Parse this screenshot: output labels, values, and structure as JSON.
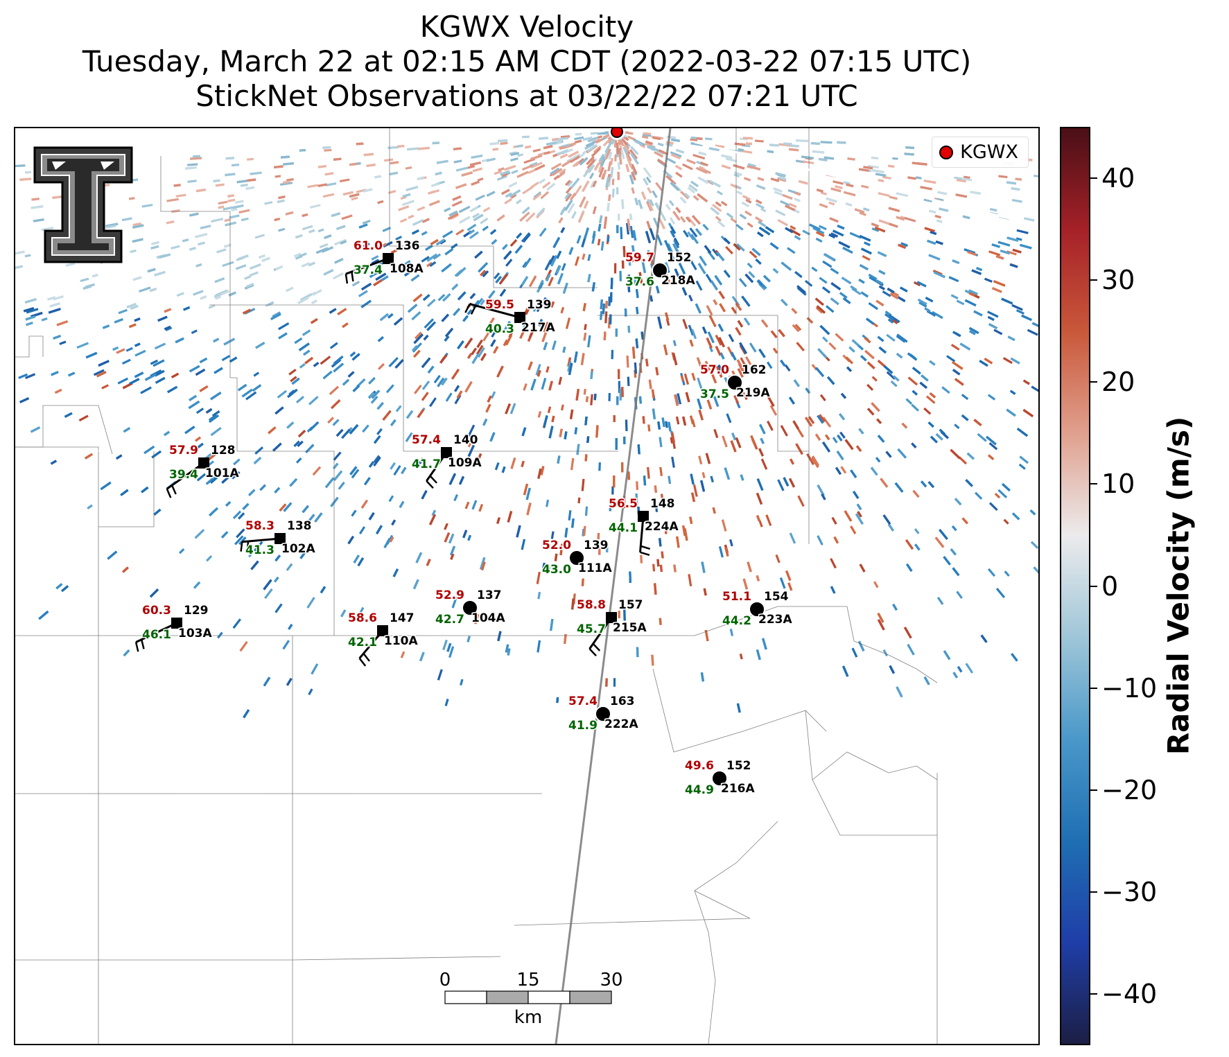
{
  "title": {
    "line1": "KGWX Velocity",
    "line2": "Tuesday, March 22 at 02:15 AM CDT (2022-03-22 07:15 UTC)",
    "line3": "StickNet Observations at 03/22/22 07:21 UTC"
  },
  "legend": {
    "label": "KGWX",
    "marker_color": "#e00000"
  },
  "colorbar": {
    "title": "Radial Velocity (m/s)",
    "range": [
      -45,
      45
    ],
    "ticks": [
      "40",
      "30",
      "20",
      "10",
      "0",
      "−10",
      "−20",
      "−30",
      "−40"
    ],
    "colors": [
      "#1c1f45",
      "#1f3ea8",
      "#1f6fb3",
      "#4a98c9",
      "#9fc6d8",
      "#ecebec",
      "#e0a08e",
      "#c9583a",
      "#a52128",
      "#4a0f16"
    ]
  },
  "scalebar": {
    "labels": [
      "0",
      "15",
      "30"
    ],
    "unit": "km"
  },
  "colors": {
    "temp_text": "#b00000",
    "dewpoint_text": "#006400",
    "id_text": "#000000"
  },
  "stations": [
    {
      "id": "108A",
      "temp": "61.0",
      "dew": "37.4",
      "dir": "136",
      "marker": "square"
    },
    {
      "id": "217A",
      "temp": "59.5",
      "dew": "40.3",
      "dir": "139",
      "marker": "square"
    },
    {
      "id": "218A",
      "temp": "59.7",
      "dew": "37.6",
      "dir": "152",
      "marker": "circle"
    },
    {
      "id": "219A",
      "temp": "57.0",
      "dew": "37.5",
      "dir": "162",
      "marker": "circle"
    },
    {
      "id": "101A",
      "temp": "57.9",
      "dew": "39.4",
      "dir": "128",
      "marker": "square"
    },
    {
      "id": "109A",
      "temp": "57.4",
      "dew": "41.7",
      "dir": "140",
      "marker": "square"
    },
    {
      "id": "224A",
      "temp": "56.5",
      "dew": "44.1",
      "dir": "148",
      "marker": "square"
    },
    {
      "id": "102A",
      "temp": "58.3",
      "dew": "41.3",
      "dir": "138",
      "marker": "square"
    },
    {
      "id": "111A",
      "temp": "52.0",
      "dew": "43.0",
      "dir": "139",
      "marker": "circle"
    },
    {
      "id": "104A",
      "temp": "52.9",
      "dew": "42.7",
      "dir": "137",
      "marker": "circle"
    },
    {
      "id": "103A",
      "temp": "60.3",
      "dew": "46.1",
      "dir": "129",
      "marker": "square"
    },
    {
      "id": "110A",
      "temp": "58.6",
      "dew": "42.1",
      "dir": "147",
      "marker": "square"
    },
    {
      "id": "215A",
      "temp": "58.8",
      "dew": "45.7",
      "dir": "157",
      "marker": "square"
    },
    {
      "id": "223A",
      "temp": "51.1",
      "dew": "44.2",
      "dir": "154",
      "marker": "circle"
    },
    {
      "id": "222A",
      "temp": "57.4",
      "dew": "41.9",
      "dir": "163",
      "marker": "circle"
    },
    {
      "id": "216A",
      "temp": "49.6",
      "dew": "44.9",
      "dir": "152",
      "marker": "circle"
    }
  ]
}
